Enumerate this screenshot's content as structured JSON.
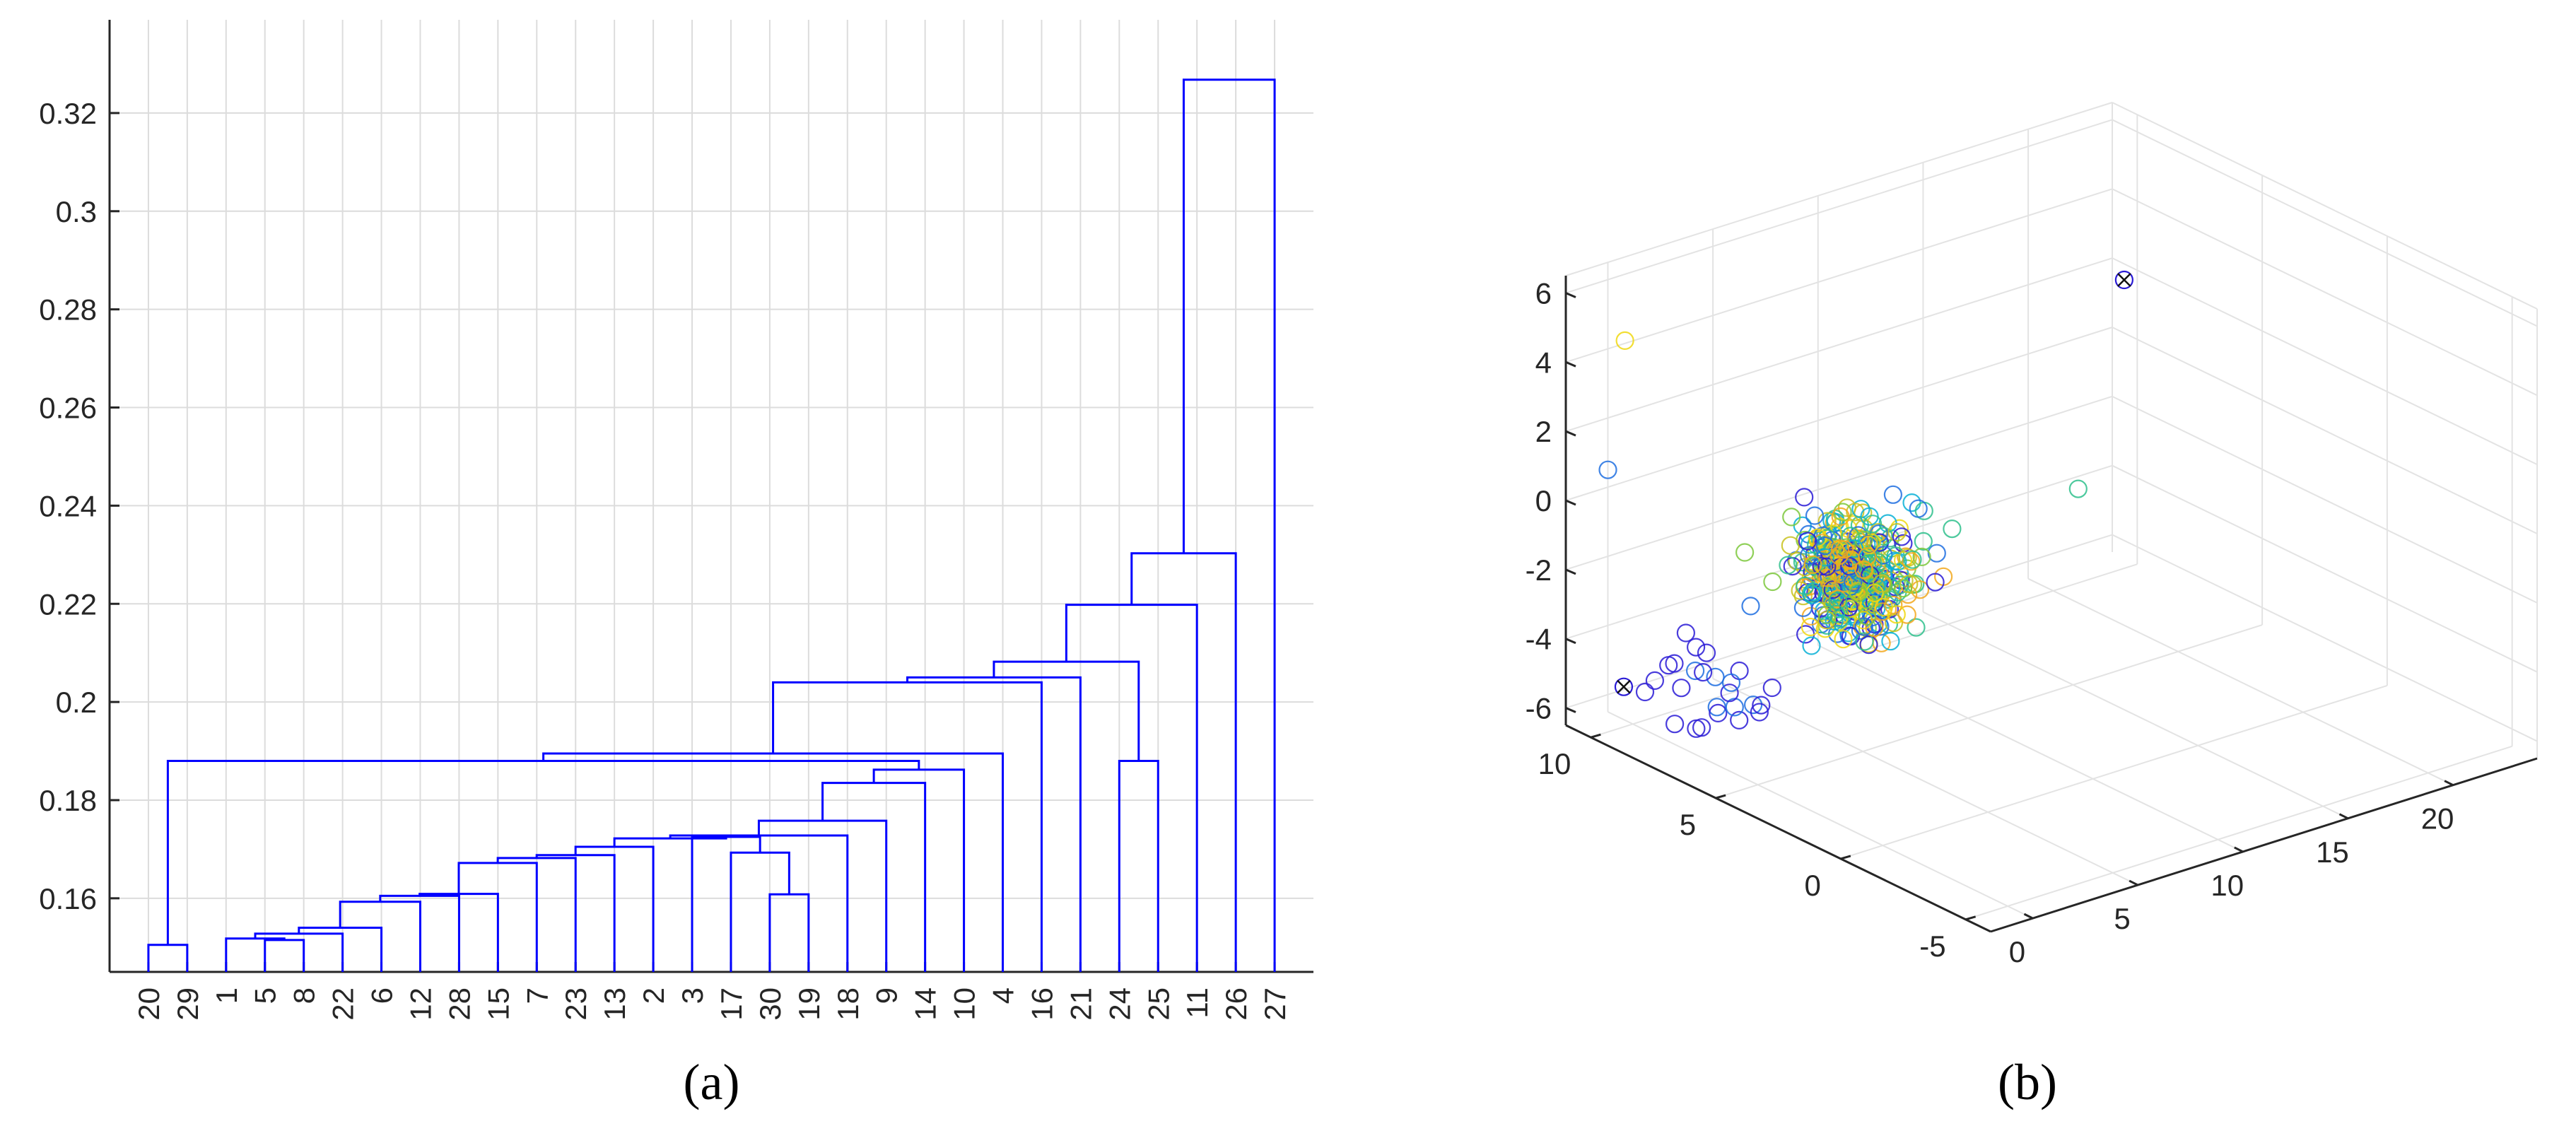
{
  "chart_data": [
    {
      "type": "dendrogram",
      "label": "(a)",
      "ylim": [
        0.145,
        0.339
      ],
      "y_ticks": [
        0.16,
        0.18,
        0.2,
        0.22,
        0.24,
        0.26,
        0.28,
        0.3,
        0.32
      ],
      "y_tick_labels": [
        "0.16",
        "0.18",
        "0.2",
        "0.22",
        "0.24",
        "0.26",
        "0.28",
        "0.3",
        "0.32"
      ],
      "leaf_order": [
        "20",
        "29",
        "1",
        "5",
        "8",
        "22",
        "6",
        "12",
        "28",
        "15",
        "7",
        "23",
        "13",
        "2",
        "3",
        "17",
        "30",
        "19",
        "18",
        "9",
        "14",
        "10",
        "4",
        "16",
        "21",
        "24",
        "25",
        "11",
        "26",
        "27"
      ],
      "line_color": "#0000ff",
      "links": [
        {
          "left": "20",
          "right": "29",
          "height": 0.1505
        },
        {
          "left": "5",
          "right": "8",
          "height": 0.1515
        },
        {
          "left": "1",
          "right": "c2",
          "height": 0.1518
        },
        {
          "left": "c3",
          "right": "22",
          "height": 0.1528
        },
        {
          "left": "c4",
          "right": "6",
          "height": 0.154
        },
        {
          "left": "c5",
          "right": "12",
          "height": 0.1593
        },
        {
          "left": "c6",
          "right": "28",
          "height": 0.1605
        },
        {
          "left": "c7",
          "right": "15",
          "height": 0.1609
        },
        {
          "left": "30",
          "right": "19",
          "height": 0.1608
        },
        {
          "left": "c8",
          "right": "7",
          "height": 0.1672
        },
        {
          "left": "c10",
          "right": "23",
          "height": 0.1682
        },
        {
          "left": "17",
          "right": "c9",
          "height": 0.1693
        },
        {
          "left": "c11",
          "right": "13",
          "height": 0.1688
        },
        {
          "left": "c13",
          "right": "2",
          "height": 0.1705
        },
        {
          "left": "3",
          "right": "c12",
          "height": 0.1725
        },
        {
          "left": "c14",
          "right": "c15",
          "height": 0.1722
        },
        {
          "left": "c16",
          "right": "18",
          "height": 0.1728
        },
        {
          "left": "c17",
          "right": "9",
          "height": 0.1758
        },
        {
          "left": "c18",
          "right": "14",
          "height": 0.1835
        },
        {
          "left": "c19",
          "right": "10",
          "height": 0.1862
        },
        {
          "left": "c1",
          "right": "c20",
          "height": 0.188
        },
        {
          "left": "c21",
          "right": "4",
          "height": 0.1895
        },
        {
          "left": "c22",
          "right": "16",
          "height": 0.204
        },
        {
          "left": "c23",
          "right": "21",
          "height": 0.205
        },
        {
          "left": "24",
          "right": "25",
          "height": 0.188
        },
        {
          "left": "c24",
          "right": "c25",
          "height": 0.2082
        },
        {
          "left": "c26",
          "right": "11",
          "height": 0.2198
        },
        {
          "left": "c27",
          "right": "26",
          "height": 0.2303
        },
        {
          "left": "c28",
          "right": "27",
          "height": 0.3268
        }
      ]
    },
    {
      "type": "scatter3d",
      "label": "(b)",
      "x_ticks": [
        0,
        5,
        10,
        15,
        20
      ],
      "x_tick_labels": [
        "0",
        "5",
        "10",
        "15",
        "20"
      ],
      "y_ticks": [
        -5,
        0,
        5,
        10
      ],
      "y_tick_labels": [
        "-5",
        "0",
        "5",
        "10"
      ],
      "z_ticks": [
        -6,
        -4,
        -2,
        0,
        2,
        4,
        6
      ],
      "z_tick_labels": [
        "-6",
        "-4",
        "-2",
        "0",
        "2",
        "4",
        "6"
      ],
      "xlim": [
        -2,
        24
      ],
      "ylim": [
        -6,
        11
      ],
      "zlim": [
        -6.5,
        6.5
      ],
      "colors": [
        "#2a1bd6",
        "#1f6fe0",
        "#08b0d6",
        "#2ec08c",
        "#7cc83c",
        "#c8c21e",
        "#f2a81c",
        "#f0d810"
      ],
      "centroid_color": "#111111",
      "marker_count": 430,
      "centroids": [
        {
          "x": 21,
          "y": 8,
          "z": 3
        },
        {
          "x": -4,
          "y": 7,
          "z": -3.6
        }
      ],
      "outliers": [
        {
          "x": 2,
          "y": 12,
          "z": 3.5,
          "c": 7
        },
        {
          "x": -3,
          "y": 3,
          "z": 1.5,
          "c": 4
        },
        {
          "x": 0,
          "y": 11,
          "z": 0.5,
          "c": 1
        },
        {
          "x": 7,
          "y": 9,
          "z": -3.5,
          "c": 3
        },
        {
          "x": 14,
          "y": 9,
          "z": -3.2,
          "c": 3
        },
        {
          "x": 20,
          "y": 9,
          "z": -3.2,
          "c": 3
        },
        {
          "x": 22,
          "y": 17,
          "z": 2.5,
          "c": 3
        },
        {
          "x": 5,
          "y": 7,
          "z": -1.8,
          "c": 6
        },
        {
          "x": 5,
          "y": 6,
          "z": -2.5,
          "c": 3
        },
        {
          "x": 6,
          "y": 4,
          "z": -1.5,
          "c": 5
        }
      ]
    }
  ]
}
